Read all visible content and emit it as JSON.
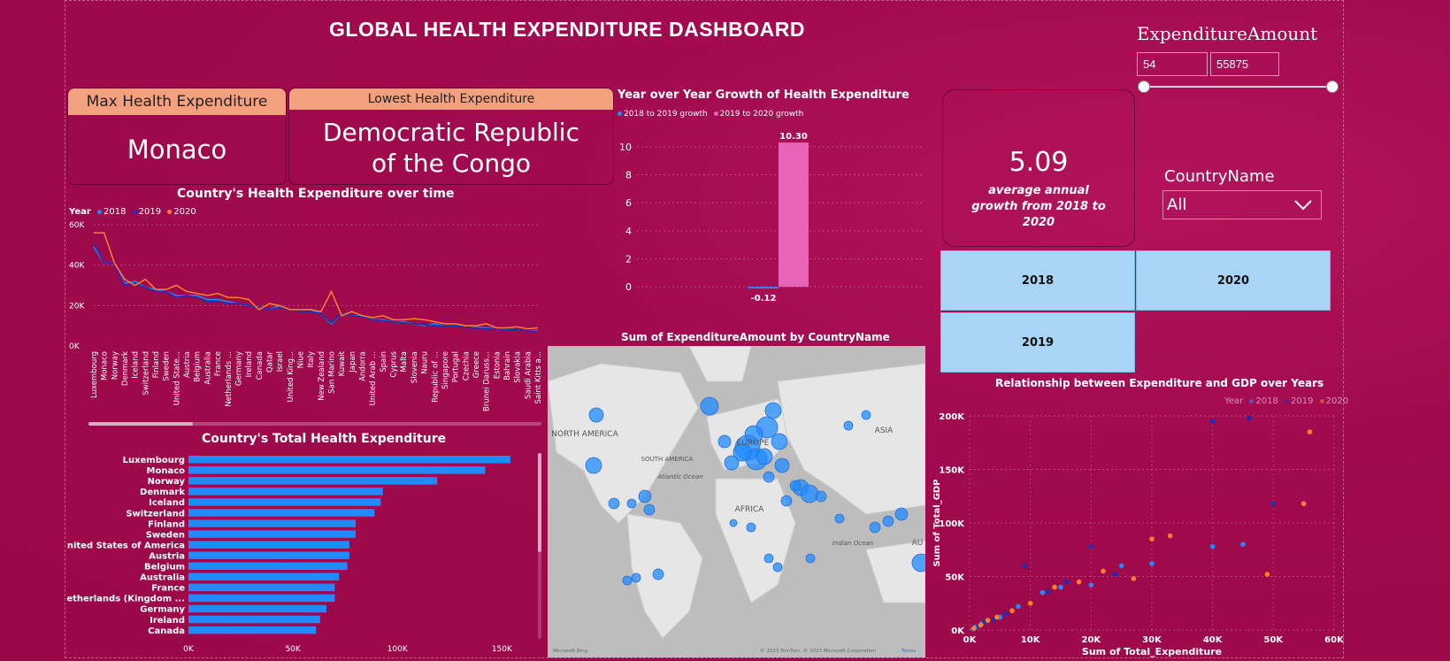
{
  "title": "GLOBAL HEALTH EXPENDITURE DASHBOARD",
  "max_card": {
    "label": "Max Health Expenditure",
    "value": "Monaco"
  },
  "min_card": {
    "label": "Lowest Health Expenditure",
    "value": "Democratic Republic of the Congo"
  },
  "growth_kpi": {
    "value": "5.09",
    "caption": "average annual growth from 2018 to 2020"
  },
  "slicer_amount": {
    "label": "ExpenditureAmount",
    "min": "54",
    "max": "55875"
  },
  "slicer_country": {
    "label": "CountryName",
    "selected": "All"
  },
  "year_buttons": [
    "2018",
    "2020",
    "2019"
  ],
  "colors": {
    "y2018": "#1f8bff",
    "y2019": "#1a2fb5",
    "y2020": "#ff7f2a",
    "pink": "#e763b8",
    "bar": "#1f8bff"
  },
  "charts": [
    {
      "id": "line",
      "type": "line",
      "title": "Country's Health Expenditure over time",
      "legend_title": "Year",
      "categories": [
        "Luxembourg",
        "Monaco",
        "Norway",
        "Denmark",
        "Iceland",
        "Switzerland",
        "Finland",
        "Sweden",
        "United State...",
        "Austria",
        "Belgium",
        "Australia",
        "France",
        "Netherlands ...",
        "Germany",
        "Ireland",
        "Canada",
        "Qatar",
        "Israel",
        "United King...",
        "Niue",
        "Italy",
        "New Zealand",
        "San Marino",
        "Kuwait",
        "Japan",
        "Andorra",
        "United Arab ...",
        "Spain",
        "Cyprus",
        "Malta",
        "Slovenia",
        "Nauru",
        "Republic of ...",
        "Singapore",
        "Portugal",
        "Czechia",
        "Greece",
        "Brunei Daruss...",
        "Estonia",
        "Bahrain",
        "Slovakia",
        "Saudi Arabia",
        "Saint Kitts a..."
      ],
      "y_ticks": [
        "0K",
        "20K",
        "40K",
        "60K"
      ],
      "ylim": [
        0,
        60000
      ],
      "series": [
        {
          "name": "2018",
          "values": [
            49000,
            41000,
            41000,
            31000,
            32000,
            29000,
            28000,
            27000,
            25000,
            25000,
            25000,
            23000,
            23000,
            22000,
            21000,
            20000,
            19000,
            18000,
            20000,
            18000,
            18000,
            18000,
            16000,
            11000,
            16000,
            15000,
            15000,
            13000,
            13000,
            12000,
            12000,
            11000,
            10000,
            11000,
            10000,
            10000,
            10000,
            9500,
            9000,
            8500,
            8000,
            8000,
            7500,
            7500
          ]
        },
        {
          "name": "2019",
          "values": [
            51000,
            41000,
            41000,
            30000,
            31000,
            29000,
            27000,
            27000,
            24000,
            25000,
            24000,
            22000,
            22000,
            21000,
            21000,
            20000,
            19000,
            18000,
            19000,
            18000,
            17000,
            17000,
            16000,
            11500,
            16000,
            15000,
            14500,
            13000,
            12500,
            12000,
            11500,
            11000,
            10500,
            10000,
            10000,
            10000,
            9500,
            9000,
            8500,
            8500,
            8000,
            8000,
            7500,
            7000
          ]
        },
        {
          "name": "2020",
          "values": [
            56000,
            56000,
            41000,
            33000,
            30000,
            33000,
            28000,
            28000,
            30000,
            27000,
            26000,
            25000,
            26000,
            24000,
            24000,
            23000,
            18000,
            21000,
            20000,
            18000,
            18000,
            18000,
            17000,
            27000,
            15000,
            17000,
            15000,
            14000,
            15000,
            13000,
            13000,
            13500,
            13000,
            12000,
            11000,
            11000,
            10000,
            10000,
            11000,
            9000,
            9000,
            9500,
            8500,
            9000
          ]
        }
      ]
    },
    {
      "id": "hbar",
      "type": "bar",
      "title": "Country's Total Health Expenditure",
      "categories": [
        "Luxembourg",
        "Monaco",
        "Norway",
        "Denmark",
        "Iceland",
        "Switzerland",
        "Finland",
        "Sweden",
        "United States of America",
        "Austria",
        "Belgium",
        "Australia",
        "France",
        "Netherlands (Kingdom ...",
        "Germany",
        "Ireland",
        "Canada"
      ],
      "values": [
        154000,
        142000,
        119000,
        93000,
        92000,
        89000,
        80000,
        80000,
        77000,
        77000,
        76000,
        72000,
        70000,
        70000,
        66000,
        63000,
        61000
      ],
      "x_ticks": [
        "0K",
        "50K",
        "100K",
        "150K"
      ],
      "xlim": [
        0,
        160000
      ]
    },
    {
      "id": "growth",
      "type": "bar",
      "title": "Year over Year Growth of Health Expenditure",
      "series": [
        {
          "name": "2018 to 2019 growth",
          "value": -0.12
        },
        {
          "name": "2019 to 2020 growth",
          "value": 10.3
        }
      ],
      "labels": [
        "-0.12",
        "10.30"
      ],
      "y_ticks": [
        "0",
        "2",
        "4",
        "6",
        "8",
        "10"
      ],
      "ylim": [
        -1,
        11
      ]
    },
    {
      "id": "scatter",
      "type": "scatter",
      "title": "Relationship between Expenditure and GDP over Years",
      "legend_title": "Year",
      "xlabel": "Sum of Total_Expenditure",
      "ylabel": "Sum of Total_GDP",
      "x_ticks": [
        "0K",
        "10K",
        "20K",
        "30K",
        "40K",
        "50K",
        "60K"
      ],
      "y_ticks": [
        "0K",
        "50K",
        "100K",
        "150K",
        "200K"
      ],
      "xlim": [
        0,
        60000
      ],
      "ylim": [
        0,
        200000
      ],
      "series": [
        {
          "name": "2018",
          "points": [
            [
              500,
              1000
            ],
            [
              1000,
              3000
            ],
            [
              2000,
              6000
            ],
            [
              3000,
              9000
            ],
            [
              5000,
              12000
            ],
            [
              8000,
              22000
            ],
            [
              12000,
              35000
            ],
            [
              15000,
              40000
            ],
            [
              20000,
              42000
            ],
            [
              25000,
              60000
            ],
            [
              30000,
              62000
            ],
            [
              40000,
              78000
            ],
            [
              45000,
              80000
            ]
          ]
        },
        {
          "name": "2019",
          "points": [
            [
              600,
              1200
            ],
            [
              1500,
              4000
            ],
            [
              2500,
              8000
            ],
            [
              4000,
              10000
            ],
            [
              6000,
              15000
            ],
            [
              9000,
              60000
            ],
            [
              13000,
              36000
            ],
            [
              16000,
              45000
            ],
            [
              20000,
              78000
            ],
            [
              24000,
              52000
            ],
            [
              40000,
              195000
            ],
            [
              46000,
              198000
            ],
            [
              50000,
              118000
            ]
          ]
        },
        {
          "name": "2020",
          "points": [
            [
              700,
              1500
            ],
            [
              1800,
              4500
            ],
            [
              3000,
              9000
            ],
            [
              4500,
              12000
            ],
            [
              7000,
              18000
            ],
            [
              10000,
              25000
            ],
            [
              14000,
              40000
            ],
            [
              18000,
              45000
            ],
            [
              22000,
              55000
            ],
            [
              27000,
              48000
            ],
            [
              30000,
              85000
            ],
            [
              33000,
              88000
            ],
            [
              49000,
              52000
            ],
            [
              56000,
              185000
            ],
            [
              55000,
              118000
            ]
          ]
        }
      ]
    },
    {
      "id": "map",
      "type": "scatter",
      "title": "Sum of ExpenditureAmount by CountryName",
      "labels": [
        "NORTH AMERICA",
        "SOUTH AMERICA",
        "EUROPE",
        "AFRICA",
        "ASIA",
        "Atlantic Ocean",
        "Indian Ocean",
        "AU"
      ],
      "footer": "© 2023 TomTom, © 2023 Microsoft Corporation",
      "brand": "Microsoft Bing",
      "terms": "Terms"
    }
  ],
  "year_legend": [
    "2018",
    "2019",
    "2020"
  ]
}
